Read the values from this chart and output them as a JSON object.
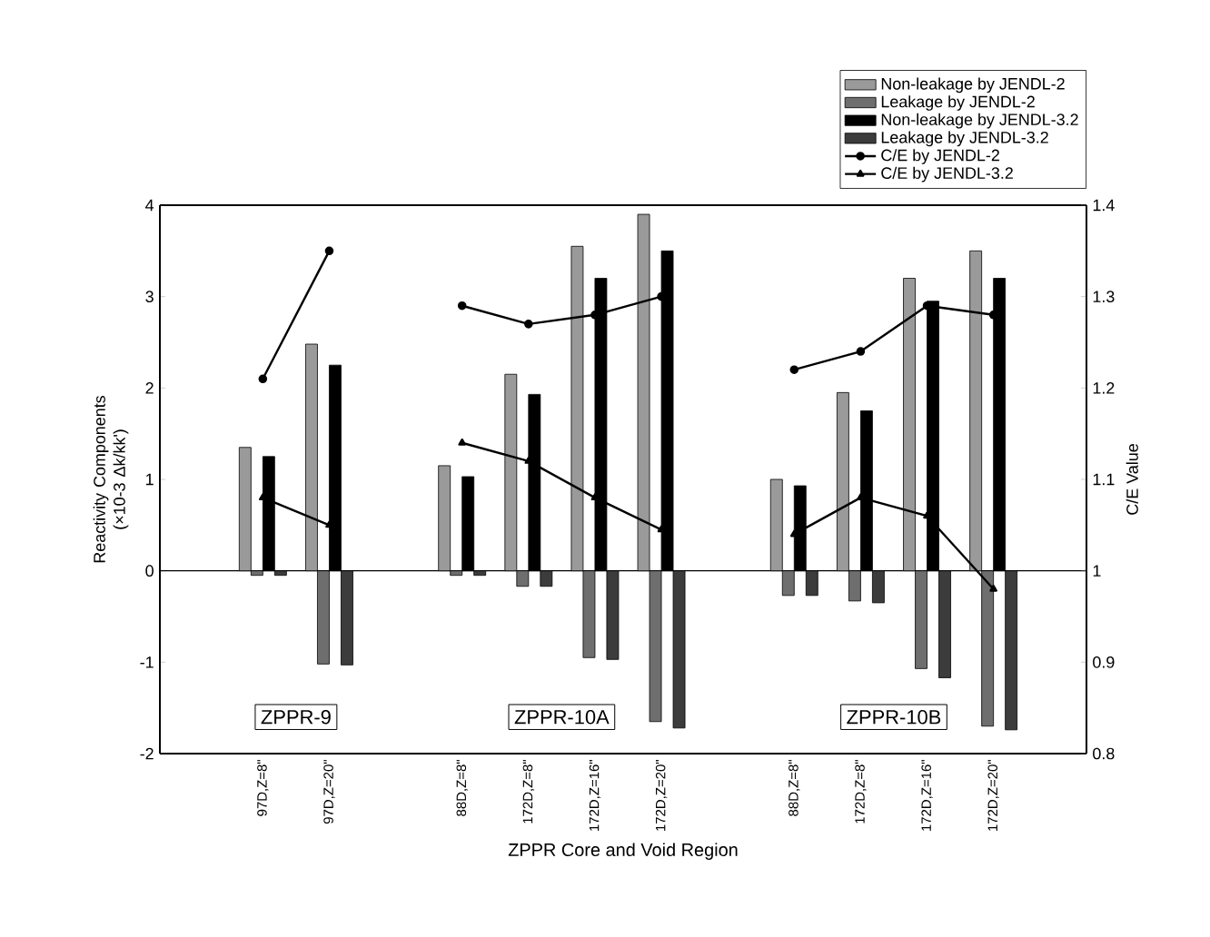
{
  "chart_data": {
    "type": "bar",
    "categories": [
      "97D,Z=8\"",
      "97D,Z=20\"",
      null,
      "88D,Z=8\"",
      "172D,Z=8\"",
      "172D,Z=16\"",
      "172D,Z=20\"",
      null,
      "88D,Z=8\"",
      "172D,Z=8\"",
      "172D,Z=16\"",
      "172D,Z=20\""
    ],
    "series": [
      {
        "name": "Non-leakage by JENDL-2",
        "color": "#9a9a9a",
        "values": [
          1.35,
          2.48,
          null,
          1.15,
          2.15,
          3.55,
          3.9,
          null,
          1.0,
          1.95,
          3.2,
          3.5
        ]
      },
      {
        "name": "Leakage by JENDL-2",
        "color": "#6e6e6e",
        "values": [
          -0.05,
          -1.02,
          null,
          -0.05,
          -0.17,
          -0.95,
          -1.65,
          null,
          -0.27,
          -0.33,
          -1.07,
          -1.7
        ]
      },
      {
        "name": "Non-leakage by JENDL-3.2",
        "color": "#000000",
        "values": [
          1.25,
          2.25,
          null,
          1.03,
          1.93,
          3.2,
          3.5,
          null,
          0.93,
          1.75,
          2.95,
          3.2
        ]
      },
      {
        "name": "Leakage by JENDL-3.2",
        "color": "#3c3c3c",
        "values": [
          -0.05,
          -1.03,
          null,
          -0.05,
          -0.17,
          -0.97,
          -1.72,
          null,
          -0.27,
          -0.35,
          -1.17,
          -1.74
        ]
      },
      {
        "name": "C/E by JENDL-2",
        "type": "line",
        "axis": "y2",
        "marker": "circle",
        "color": "#000000",
        "values": [
          1.21,
          1.35,
          null,
          1.29,
          1.27,
          1.28,
          1.3,
          null,
          1.22,
          1.24,
          1.29,
          1.28
        ]
      },
      {
        "name": "C/E by JENDL-3.2",
        "type": "line",
        "axis": "y2",
        "marker": "triangle",
        "color": "#000000",
        "values": [
          1.08,
          1.05,
          null,
          1.14,
          1.12,
          1.08,
          1.045,
          null,
          1.04,
          1.08,
          1.06,
          0.98
        ]
      }
    ],
    "xlabel": "ZPPR Core and Void Region",
    "ylabel": "Reactivity Components (×10-3 Δk/kk')",
    "y2label": "C/E Value",
    "ylim": [
      -2,
      4
    ],
    "yticks": [
      -2,
      -1,
      0,
      1,
      2,
      3,
      4
    ],
    "y2lim": [
      0.8,
      1.4
    ],
    "y2ticks": [
      0.8,
      0.9,
      1,
      1.1,
      1.2,
      1.3,
      1.4
    ],
    "ref_lines": [
      {
        "axis": "y",
        "value": 0,
        "color": "#000000"
      }
    ],
    "annotations": [
      "ZPPR-9",
      "ZPPR-10A",
      "ZPPR-10B"
    ],
    "legend": "top right",
    "line_style": "solid"
  }
}
